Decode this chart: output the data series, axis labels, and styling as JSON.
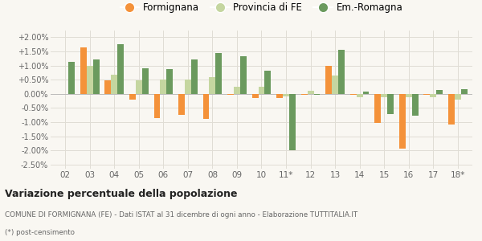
{
  "categories": [
    "02",
    "03",
    "04",
    "05",
    "06",
    "07",
    "08",
    "09",
    "10",
    "11*",
    "12",
    "13",
    "14",
    "15",
    "16",
    "17",
    "18*"
  ],
  "formignana": [
    0.0,
    1.65,
    0.48,
    -0.2,
    -0.85,
    -0.75,
    -0.9,
    -0.05,
    -0.15,
    -0.15,
    -0.05,
    0.98,
    -0.05,
    -1.02,
    -1.93,
    -0.05,
    -1.1
  ],
  "provincia_fe": [
    0.0,
    0.98,
    0.68,
    0.48,
    0.5,
    0.5,
    0.58,
    0.25,
    0.25,
    -0.1,
    0.1,
    0.65,
    -0.12,
    -0.12,
    -0.12,
    -0.12,
    -0.22
  ],
  "em_romagna": [
    1.12,
    1.22,
    1.75,
    0.9,
    0.88,
    1.22,
    1.45,
    1.32,
    0.82,
    -2.0,
    -0.05,
    1.55,
    0.08,
    -0.72,
    -0.78,
    0.12,
    0.15
  ],
  "color_formignana": "#f4923a",
  "color_provincia": "#c5d6a0",
  "color_em_romagna": "#6b9a5e",
  "title": "Variazione percentuale della popolazione",
  "subtitle": "COMUNE DI FORMIGNANA (FE) - Dati ISTAT al 31 dicembre di ogni anno - Elaborazione TUTTITALIA.IT",
  "footnote": "(*) post-censimento",
  "legend_labels": [
    "Formignana",
    "Provincia di FE",
    "Em.-Romagna"
  ],
  "yticks": [
    -2.5,
    -2.0,
    -1.5,
    -1.0,
    -0.5,
    0.0,
    0.5,
    1.0,
    1.5,
    2.0
  ],
  "ylim": [
    -2.65,
    2.25
  ],
  "background_color": "#f9f7f2",
  "grid_color": "#e0ddd5"
}
